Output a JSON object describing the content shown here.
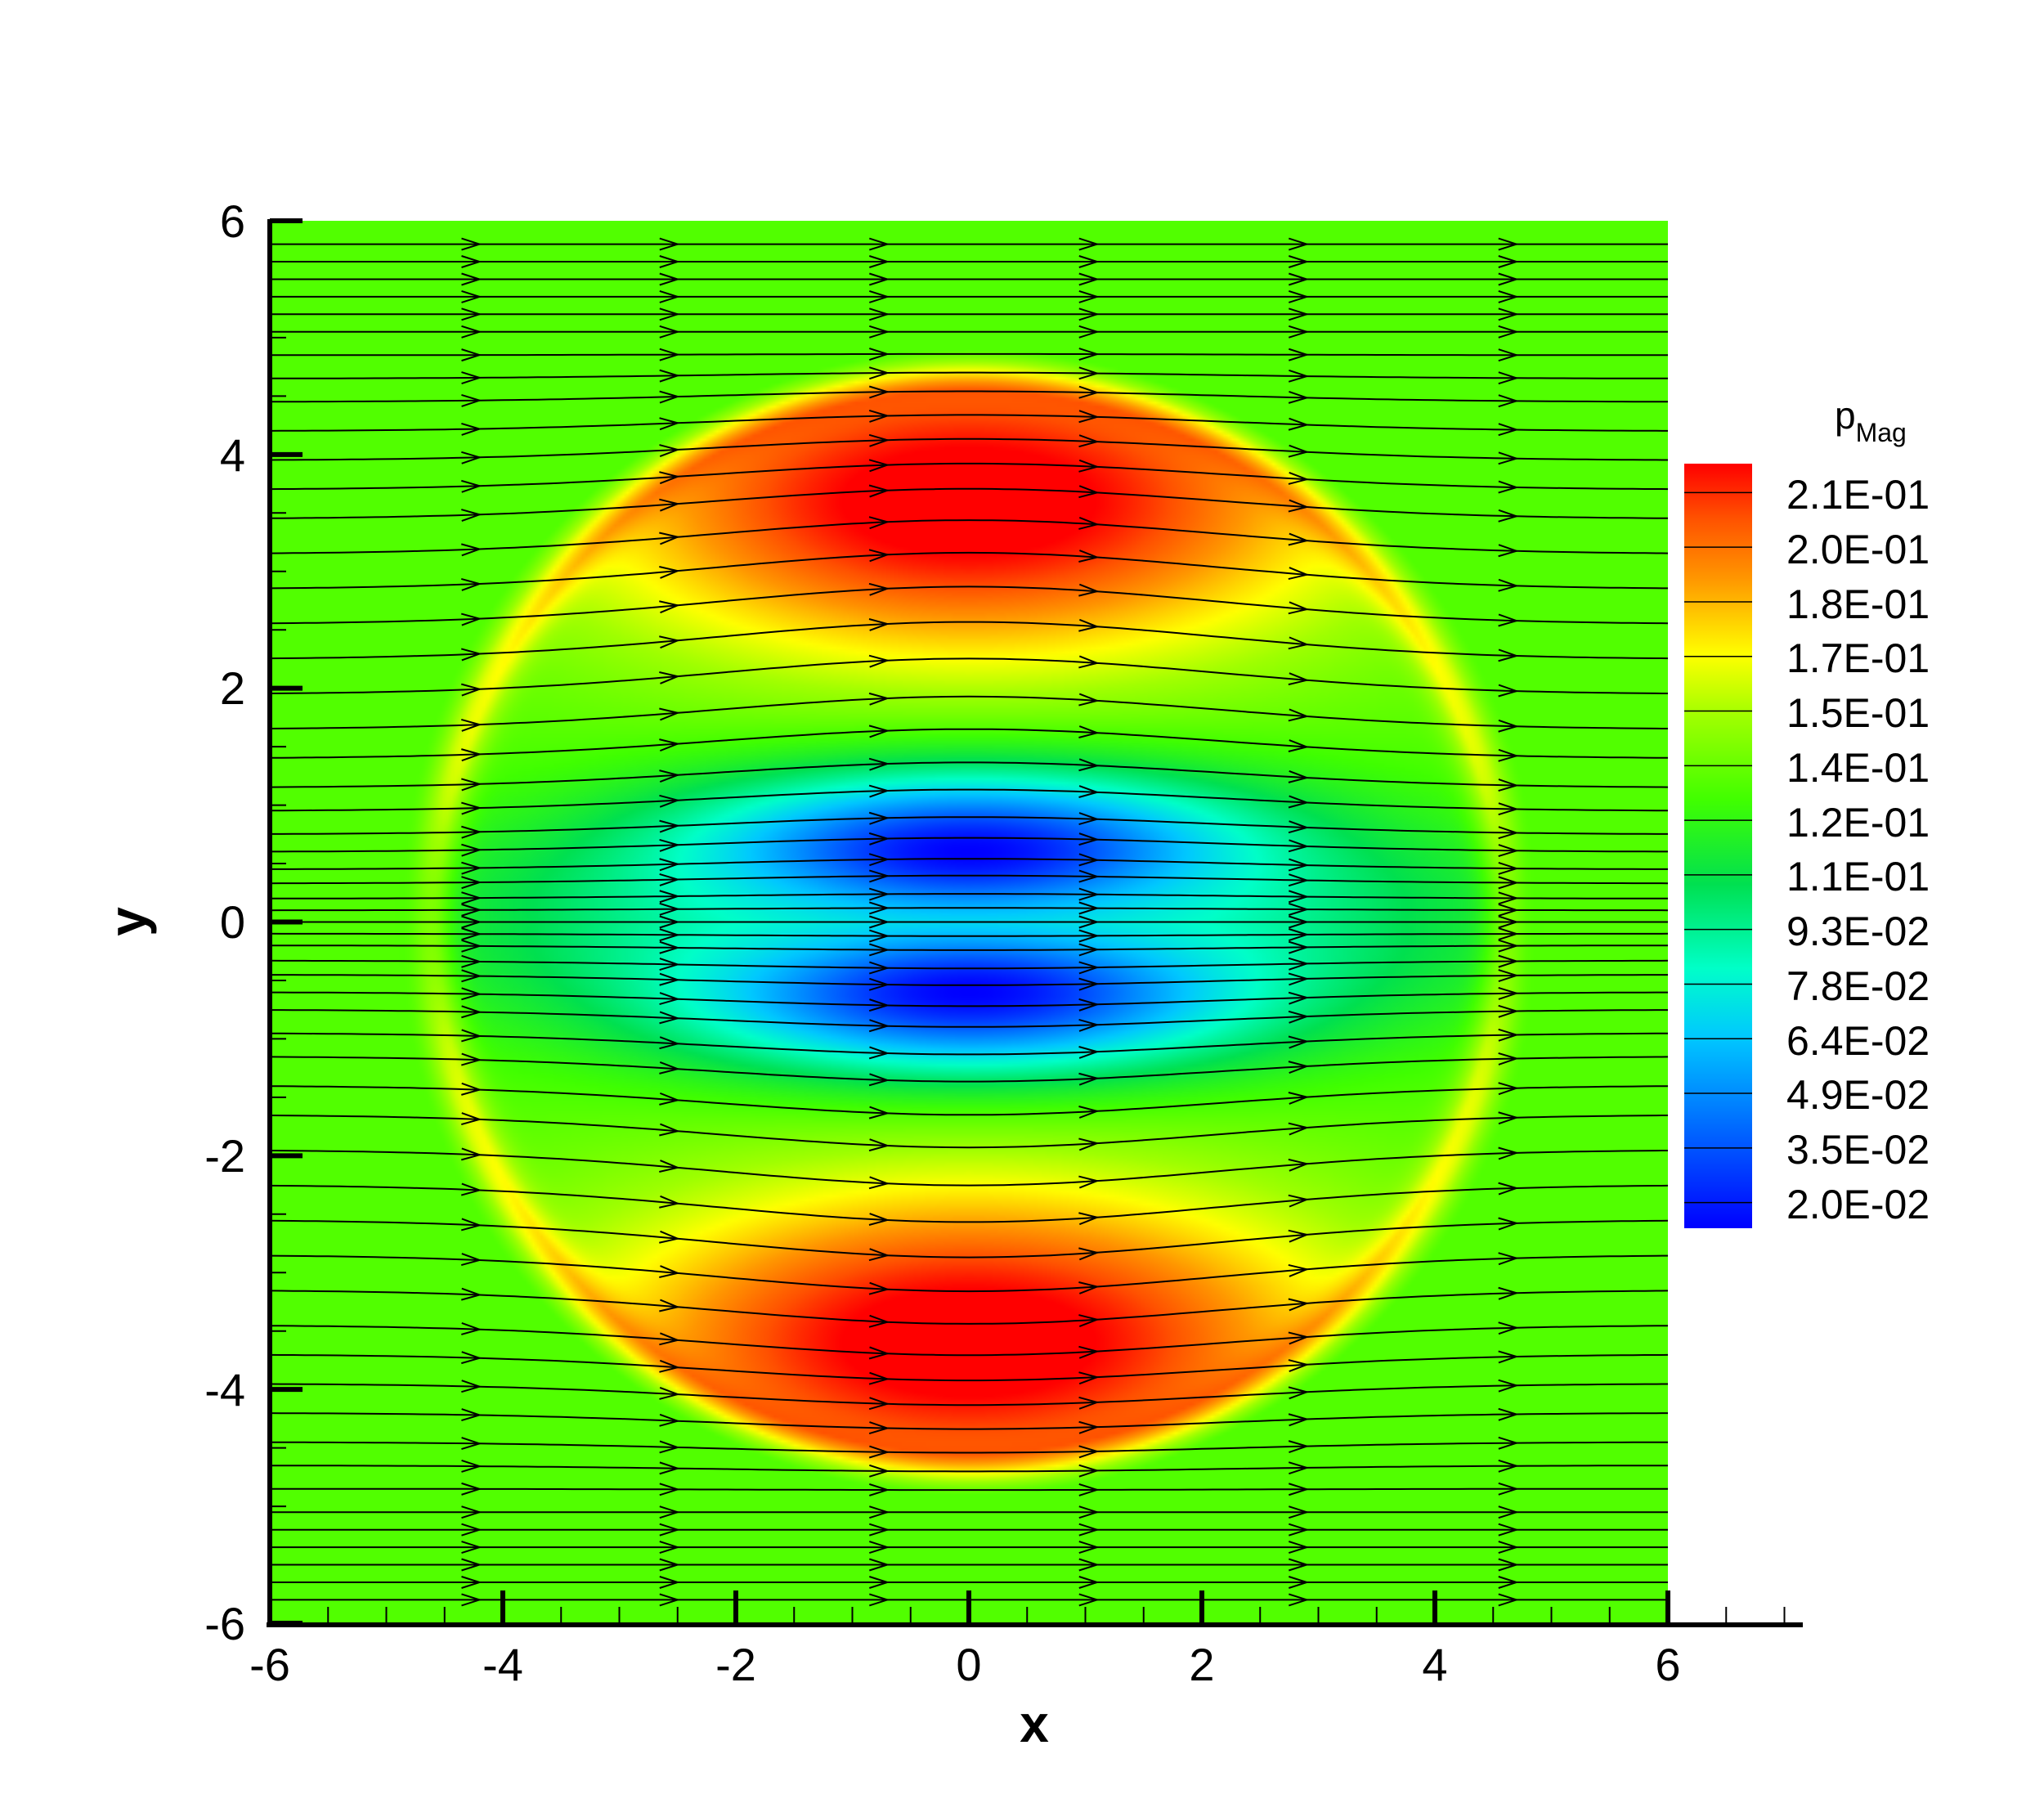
{
  "chart_data": {
    "type": "heatmap",
    "title": "",
    "xlabel": "x",
    "ylabel": "y",
    "xlim": [
      -6,
      6
    ],
    "ylim": [
      -6,
      6
    ],
    "x_ticks": [
      "-6",
      "-4",
      "-2",
      "0",
      "2",
      "4",
      "6"
    ],
    "y_ticks": [
      "6",
      "4",
      "2",
      "0",
      "-2",
      "-4",
      "-6"
    ],
    "colorbar": {
      "title_main": "p",
      "title_sub": "Mag",
      "levels": [
        "2.1E-01",
        "2.0E-01",
        "1.8E-01",
        "1.7E-01",
        "1.5E-01",
        "1.4E-01",
        "1.2E-01",
        "1.1E-01",
        "9.3E-02",
        "7.8E-02",
        "6.4E-02",
        "4.9E-02",
        "3.5E-02",
        "2.0E-02"
      ],
      "range": [
        0.02,
        0.21
      ]
    },
    "field": {
      "background_value": 0.13,
      "disk_radius": 4.9,
      "upper_lobe_peak": {
        "x": 0,
        "y": 3.6,
        "value": 0.21
      },
      "lower_lobe_peak": {
        "x": 0,
        "y": -3.6,
        "value": 0.21
      },
      "upper_core_min": {
        "x": 0,
        "y": 0.6,
        "value": 0.02
      },
      "lower_core_min": {
        "x": 0,
        "y": -0.6,
        "value": 0.02
      },
      "midplane_value": 0.06
    },
    "streamlines": {
      "direction": "+x",
      "seed_x": -6,
      "seed_y": [
        5.8,
        5.65,
        5.5,
        5.35,
        5.2,
        5.05,
        4.85,
        4.65,
        4.45,
        4.2,
        3.95,
        3.7,
        3.45,
        3.15,
        2.85,
        2.55,
        2.25,
        1.95,
        1.65,
        1.4,
        1.15,
        0.95,
        0.75,
        0.6,
        0.45,
        0.33,
        0.2,
        0.1,
        0.0,
        -0.1,
        -0.2,
        -0.33,
        -0.45,
        -0.6,
        -0.75,
        -0.95,
        -1.15,
        -1.4,
        -1.65,
        -1.95,
        -2.25,
        -2.55,
        -2.85,
        -3.15,
        -3.45,
        -3.7,
        -3.95,
        -4.2,
        -4.45,
        -4.65,
        -4.85,
        -5.05,
        -5.2,
        -5.35,
        -5.5,
        -5.65,
        -5.8
      ],
      "arrow_x": [
        -4.2,
        -2.5,
        -0.7,
        1.1,
        2.9,
        4.7
      ]
    }
  }
}
